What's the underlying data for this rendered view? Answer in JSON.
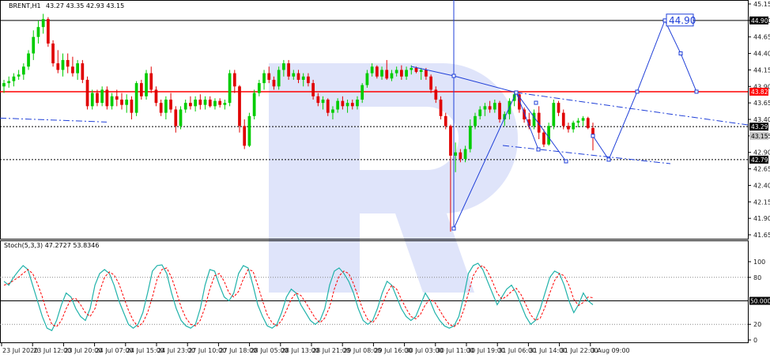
{
  "header": {
    "symbol": "BRENT,H1",
    "ohlc": "43.27 43.35 42.93 43.15"
  },
  "stoch_header": {
    "label": "Stoch(5,3,3) 47.2727 53.8346"
  },
  "colors": {
    "bull": "#00cc00",
    "bear": "#e00000",
    "accent": "#1f3fd8",
    "red_line": "#ff0000",
    "main": "#20b2aa",
    "signal": "#ff0000",
    "watermark": "#dfe4fa"
  },
  "price_ticks": [
    "45.15",
    "44.90",
    "44.65",
    "44.40",
    "44.15",
    "43.90",
    "43.65",
    "43.40",
    "43.15",
    "42.90",
    "42.65",
    "42.40",
    "42.15",
    "41.90",
    "41.65"
  ],
  "price_tags": [
    {
      "text": "44.90",
      "kind": "black"
    },
    {
      "text": "43.82",
      "kind": "red"
    },
    {
      "text": "43.29",
      "kind": "black"
    },
    {
      "text": "43.15",
      "kind": "gray"
    },
    {
      "text": "42.79",
      "kind": "black"
    }
  ],
  "osc_ticks": [
    "100",
    "80",
    "20",
    "0"
  ],
  "osc_tag": "50.0000",
  "time_labels": [
    "23 Jul 2020",
    "23 Jul 12:00",
    "23 Jul 20:00",
    "24 Jul 07:00",
    "24 Jul 15:00",
    "24 Jul 23:00",
    "27 Jul 10:00",
    "27 Jul 18:00",
    "28 Jul 05:00",
    "28 Jul 13:00",
    "28 Jul 21:00",
    "29 Jul 08:00",
    "29 Jul 16:00",
    "30 Jul 03:00",
    "30 Jul 11:00",
    "30 Jul 19:00",
    "31 Jul 06:00",
    "31 Jul 14:00",
    "31 Jul 22:00",
    "3 Aug 09:00"
  ],
  "target_label": "44.90",
  "chart_data": {
    "type": "candlestick",
    "symbol": "BRENT,H1",
    "y_range": [
      41.6,
      45.2
    ],
    "horizontal_levels": [
      44.9,
      43.82,
      43.29,
      42.79
    ],
    "forecast_path": [
      43.15,
      42.79,
      43.82,
      44.9,
      44.4,
      43.82
    ],
    "candles": [
      {
        "o": 43.9,
        "h": 44.0,
        "l": 43.8,
        "c": 43.95
      },
      {
        "o": 43.95,
        "h": 44.05,
        "l": 43.88,
        "c": 43.98
      },
      {
        "o": 43.98,
        "h": 44.1,
        "l": 43.9,
        "c": 44.05
      },
      {
        "o": 44.05,
        "h": 44.15,
        "l": 44.0,
        "c": 44.08
      },
      {
        "o": 44.08,
        "h": 44.25,
        "l": 44.0,
        "c": 44.2
      },
      {
        "o": 44.2,
        "h": 44.45,
        "l": 44.15,
        "c": 44.4
      },
      {
        "o": 44.4,
        "h": 44.75,
        "l": 44.3,
        "c": 44.65
      },
      {
        "o": 44.65,
        "h": 44.9,
        "l": 44.55,
        "c": 44.8
      },
      {
        "o": 44.8,
        "h": 45.0,
        "l": 44.7,
        "c": 44.92
      },
      {
        "o": 44.92,
        "h": 44.95,
        "l": 44.5,
        "c": 44.55
      },
      {
        "o": 44.55,
        "h": 44.6,
        "l": 44.2,
        "c": 44.25
      },
      {
        "o": 44.25,
        "h": 44.45,
        "l": 44.1,
        "c": 44.15
      },
      {
        "o": 44.15,
        "h": 44.4,
        "l": 44.05,
        "c": 44.3
      },
      {
        "o": 44.3,
        "h": 44.4,
        "l": 44.1,
        "c": 44.2
      },
      {
        "o": 44.2,
        "h": 44.35,
        "l": 44.05,
        "c": 44.1
      },
      {
        "o": 44.1,
        "h": 44.3,
        "l": 44.0,
        "c": 44.25
      },
      {
        "o": 44.25,
        "h": 44.3,
        "l": 43.95,
        "c": 44.0
      },
      {
        "o": 44.0,
        "h": 44.05,
        "l": 43.55,
        "c": 43.6
      },
      {
        "o": 43.6,
        "h": 43.85,
        "l": 43.55,
        "c": 43.8
      },
      {
        "o": 43.8,
        "h": 43.85,
        "l": 43.6,
        "c": 43.65
      },
      {
        "o": 43.65,
        "h": 43.9,
        "l": 43.6,
        "c": 43.85
      },
      {
        "o": 43.85,
        "h": 43.9,
        "l": 43.55,
        "c": 43.6
      },
      {
        "o": 43.6,
        "h": 43.8,
        "l": 43.55,
        "c": 43.75
      },
      {
        "o": 43.75,
        "h": 43.85,
        "l": 43.6,
        "c": 43.7
      },
      {
        "o": 43.7,
        "h": 43.8,
        "l": 43.55,
        "c": 43.62
      },
      {
        "o": 43.62,
        "h": 43.78,
        "l": 43.5,
        "c": 43.7
      },
      {
        "o": 43.7,
        "h": 43.75,
        "l": 43.4,
        "c": 43.5
      },
      {
        "o": 43.5,
        "h": 43.98,
        "l": 43.45,
        "c": 43.95
      },
      {
        "o": 43.95,
        "h": 44.0,
        "l": 43.7,
        "c": 43.75
      },
      {
        "o": 43.75,
        "h": 44.15,
        "l": 43.7,
        "c": 44.1
      },
      {
        "o": 44.1,
        "h": 44.2,
        "l": 43.8,
        "c": 43.85
      },
      {
        "o": 43.85,
        "h": 43.9,
        "l": 43.6,
        "c": 43.65
      },
      {
        "o": 43.65,
        "h": 43.7,
        "l": 43.45,
        "c": 43.5
      },
      {
        "o": 43.5,
        "h": 43.75,
        "l": 43.4,
        "c": 43.7
      },
      {
        "o": 43.7,
        "h": 43.8,
        "l": 43.5,
        "c": 43.55
      },
      {
        "o": 43.55,
        "h": 43.6,
        "l": 43.2,
        "c": 43.3
      },
      {
        "o": 43.3,
        "h": 43.6,
        "l": 43.25,
        "c": 43.55
      },
      {
        "o": 43.55,
        "h": 43.7,
        "l": 43.5,
        "c": 43.65
      },
      {
        "o": 43.65,
        "h": 43.75,
        "l": 43.55,
        "c": 43.6
      },
      {
        "o": 43.6,
        "h": 43.75,
        "l": 43.52,
        "c": 43.7
      },
      {
        "o": 43.7,
        "h": 43.78,
        "l": 43.55,
        "c": 43.62
      },
      {
        "o": 43.62,
        "h": 43.75,
        "l": 43.55,
        "c": 43.7
      },
      {
        "o": 43.7,
        "h": 43.75,
        "l": 43.58,
        "c": 43.6
      },
      {
        "o": 43.6,
        "h": 43.72,
        "l": 43.55,
        "c": 43.68
      },
      {
        "o": 43.68,
        "h": 43.72,
        "l": 43.58,
        "c": 43.62
      },
      {
        "o": 43.62,
        "h": 43.7,
        "l": 43.55,
        "c": 43.65
      },
      {
        "o": 43.65,
        "h": 44.15,
        "l": 43.6,
        "c": 44.1
      },
      {
        "o": 44.1,
        "h": 44.15,
        "l": 43.8,
        "c": 43.9
      },
      {
        "o": 43.9,
        "h": 43.92,
        "l": 43.2,
        "c": 43.3
      },
      {
        "o": 43.3,
        "h": 43.4,
        "l": 42.95,
        "c": 43.0
      },
      {
        "o": 43.0,
        "h": 43.5,
        "l": 42.98,
        "c": 43.45
      },
      {
        "o": 43.45,
        "h": 43.85,
        "l": 43.4,
        "c": 43.8
      },
      {
        "o": 43.8,
        "h": 44.0,
        "l": 43.75,
        "c": 43.95
      },
      {
        "o": 43.95,
        "h": 44.15,
        "l": 43.85,
        "c": 44.1
      },
      {
        "o": 44.1,
        "h": 44.2,
        "l": 43.95,
        "c": 44.0
      },
      {
        "o": 44.0,
        "h": 44.05,
        "l": 43.85,
        "c": 43.9
      },
      {
        "o": 43.9,
        "h": 44.2,
        "l": 43.85,
        "c": 44.15
      },
      {
        "o": 44.15,
        "h": 44.3,
        "l": 44.05,
        "c": 44.25
      },
      {
        "o": 44.25,
        "h": 44.3,
        "l": 44.0,
        "c": 44.05
      },
      {
        "o": 44.05,
        "h": 44.15,
        "l": 44.0,
        "c": 44.1
      },
      {
        "o": 44.1,
        "h": 44.15,
        "l": 43.95,
        "c": 44.0
      },
      {
        "o": 44.0,
        "h": 44.1,
        "l": 43.9,
        "c": 44.05
      },
      {
        "o": 44.05,
        "h": 44.1,
        "l": 43.9,
        "c": 43.95
      },
      {
        "o": 43.95,
        "h": 44.0,
        "l": 43.7,
        "c": 43.75
      },
      {
        "o": 43.75,
        "h": 43.8,
        "l": 43.6,
        "c": 43.65
      },
      {
        "o": 43.65,
        "h": 43.75,
        "l": 43.55,
        "c": 43.7
      },
      {
        "o": 43.7,
        "h": 43.72,
        "l": 43.45,
        "c": 43.5
      },
      {
        "o": 43.5,
        "h": 43.6,
        "l": 43.4,
        "c": 43.55
      },
      {
        "o": 43.55,
        "h": 43.72,
        "l": 43.5,
        "c": 43.68
      },
      {
        "o": 43.68,
        "h": 43.75,
        "l": 43.55,
        "c": 43.6
      },
      {
        "o": 43.6,
        "h": 43.7,
        "l": 43.5,
        "c": 43.65
      },
      {
        "o": 43.65,
        "h": 43.7,
        "l": 43.55,
        "c": 43.6
      },
      {
        "o": 43.6,
        "h": 43.75,
        "l": 43.55,
        "c": 43.7
      },
      {
        "o": 43.7,
        "h": 43.95,
        "l": 43.65,
        "c": 43.92
      },
      {
        "o": 43.92,
        "h": 44.15,
        "l": 43.88,
        "c": 44.1
      },
      {
        "o": 44.1,
        "h": 44.25,
        "l": 44.05,
        "c": 44.2
      },
      {
        "o": 44.2,
        "h": 44.22,
        "l": 44.02,
        "c": 44.05
      },
      {
        "o": 44.05,
        "h": 44.2,
        "l": 44.0,
        "c": 44.15
      },
      {
        "o": 44.15,
        "h": 44.3,
        "l": 44.0,
        "c": 44.02
      },
      {
        "o": 44.02,
        "h": 44.15,
        "l": 43.98,
        "c": 44.1
      },
      {
        "o": 44.1,
        "h": 44.2,
        "l": 44.05,
        "c": 44.15
      },
      {
        "o": 44.15,
        "h": 44.22,
        "l": 44.0,
        "c": 44.05
      },
      {
        "o": 44.05,
        "h": 44.2,
        "l": 44.0,
        "c": 44.15
      },
      {
        "o": 44.15,
        "h": 44.22,
        "l": 44.08,
        "c": 44.18
      },
      {
        "o": 44.18,
        "h": 44.2,
        "l": 44.1,
        "c": 44.12
      },
      {
        "o": 44.12,
        "h": 44.18,
        "l": 44.0,
        "c": 44.15
      },
      {
        "o": 44.15,
        "h": 44.18,
        "l": 44.0,
        "c": 44.05
      },
      {
        "o": 44.05,
        "h": 44.08,
        "l": 43.8,
        "c": 43.85
      },
      {
        "o": 43.85,
        "h": 43.9,
        "l": 43.65,
        "c": 43.7
      },
      {
        "o": 43.7,
        "h": 43.75,
        "l": 43.4,
        "c": 43.45
      },
      {
        "o": 43.45,
        "h": 43.5,
        "l": 43.25,
        "c": 43.3
      },
      {
        "o": 43.3,
        "h": 43.32,
        "l": 41.7,
        "c": 42.85
      },
      {
        "o": 42.85,
        "h": 43.05,
        "l": 42.6,
        "c": 42.9
      },
      {
        "o": 42.9,
        "h": 42.95,
        "l": 42.75,
        "c": 42.8
      },
      {
        "o": 42.8,
        "h": 43.0,
        "l": 42.75,
        "c": 42.95
      },
      {
        "o": 42.95,
        "h": 43.4,
        "l": 42.9,
        "c": 43.3
      },
      {
        "o": 43.3,
        "h": 43.5,
        "l": 43.25,
        "c": 43.45
      },
      {
        "o": 43.45,
        "h": 43.6,
        "l": 43.4,
        "c": 43.55
      },
      {
        "o": 43.55,
        "h": 43.65,
        "l": 43.45,
        "c": 43.6
      },
      {
        "o": 43.6,
        "h": 43.68,
        "l": 43.5,
        "c": 43.55
      },
      {
        "o": 43.55,
        "h": 43.7,
        "l": 43.5,
        "c": 43.65
      },
      {
        "o": 43.65,
        "h": 43.68,
        "l": 43.35,
        "c": 43.4
      },
      {
        "o": 43.4,
        "h": 43.52,
        "l": 43.3,
        "c": 43.48
      },
      {
        "o": 43.48,
        "h": 43.72,
        "l": 43.4,
        "c": 43.68
      },
      {
        "o": 43.68,
        "h": 43.82,
        "l": 43.6,
        "c": 43.78
      },
      {
        "o": 43.78,
        "h": 43.8,
        "l": 43.5,
        "c": 43.55
      },
      {
        "o": 43.55,
        "h": 43.58,
        "l": 43.35,
        "c": 43.4
      },
      {
        "o": 43.4,
        "h": 43.5,
        "l": 43.25,
        "c": 43.3
      },
      {
        "o": 43.3,
        "h": 43.55,
        "l": 43.25,
        "c": 43.5
      },
      {
        "o": 43.5,
        "h": 43.6,
        "l": 43.1,
        "c": 43.2
      },
      {
        "o": 43.2,
        "h": 43.25,
        "l": 42.98,
        "c": 43.02
      },
      {
        "o": 43.02,
        "h": 43.35,
        "l": 43.0,
        "c": 43.3
      },
      {
        "o": 43.3,
        "h": 43.7,
        "l": 43.25,
        "c": 43.65
      },
      {
        "o": 43.65,
        "h": 43.68,
        "l": 43.45,
        "c": 43.5
      },
      {
        "o": 43.5,
        "h": 43.55,
        "l": 43.25,
        "c": 43.3
      },
      {
        "o": 43.3,
        "h": 43.35,
        "l": 43.2,
        "c": 43.25
      },
      {
        "o": 43.25,
        "h": 43.38,
        "l": 43.2,
        "c": 43.35
      },
      {
        "o": 43.35,
        "h": 43.42,
        "l": 43.28,
        "c": 43.38
      },
      {
        "o": 43.38,
        "h": 43.45,
        "l": 43.3,
        "c": 43.42
      },
      {
        "o": 43.42,
        "h": 43.44,
        "l": 43.25,
        "c": 43.27
      },
      {
        "o": 43.27,
        "h": 43.35,
        "l": 42.93,
        "c": 43.15
      }
    ],
    "stochastic": {
      "name": "Stoch(5,3,3)",
      "main_value": 47.2727,
      "signal_value": 53.8346,
      "levels": [
        80,
        50,
        20
      ],
      "y_range": [
        0,
        100
      ],
      "main": [
        75,
        70,
        80,
        88,
        95,
        90,
        70,
        50,
        30,
        15,
        12,
        25,
        45,
        60,
        55,
        40,
        30,
        25,
        40,
        70,
        85,
        90,
        85,
        70,
        50,
        35,
        20,
        15,
        20,
        35,
        60,
        88,
        95,
        96,
        85,
        60,
        40,
        25,
        18,
        15,
        20,
        40,
        70,
        90,
        88,
        70,
        55,
        50,
        60,
        85,
        95,
        92,
        70,
        45,
        30,
        18,
        15,
        20,
        35,
        55,
        65,
        60,
        45,
        35,
        25,
        20,
        25,
        40,
        70,
        88,
        92,
        85,
        75,
        60,
        40,
        25,
        20,
        25,
        40,
        60,
        75,
        70,
        55,
        40,
        30,
        25,
        30,
        45,
        60,
        50,
        35,
        25,
        18,
        15,
        18,
        30,
        55,
        85,
        95,
        98,
        90,
        75,
        60,
        45,
        55,
        65,
        70,
        60,
        45,
        30,
        20,
        25,
        40,
        60,
        80,
        88,
        85,
        70,
        50,
        35,
        45,
        60,
        50,
        45
      ],
      "signal": [
        70,
        72,
        76,
        80,
        85,
        90,
        85,
        72,
        55,
        35,
        20,
        17,
        25,
        40,
        52,
        53,
        45,
        35,
        30,
        40,
        62,
        80,
        87,
        83,
        72,
        55,
        38,
        25,
        17,
        22,
        35,
        55,
        78,
        90,
        92,
        80,
        62,
        42,
        28,
        20,
        18,
        25,
        42,
        65,
        82,
        85,
        75,
        60,
        55,
        62,
        78,
        90,
        88,
        70,
        50,
        32,
        22,
        18,
        25,
        38,
        52,
        60,
        57,
        48,
        38,
        28,
        22,
        28,
        42,
        65,
        82,
        88,
        85,
        72,
        55,
        38,
        26,
        22,
        30,
        45,
        60,
        70,
        65,
        52,
        40,
        30,
        27,
        33,
        45,
        52,
        48,
        38,
        28,
        20,
        17,
        22,
        38,
        60,
        82,
        92,
        95,
        88,
        75,
        60,
        52,
        56,
        62,
        66,
        58,
        45,
        32,
        25,
        28,
        42,
        60,
        76,
        85,
        82,
        70,
        52,
        44,
        48,
        55,
        54
      ]
    }
  }
}
